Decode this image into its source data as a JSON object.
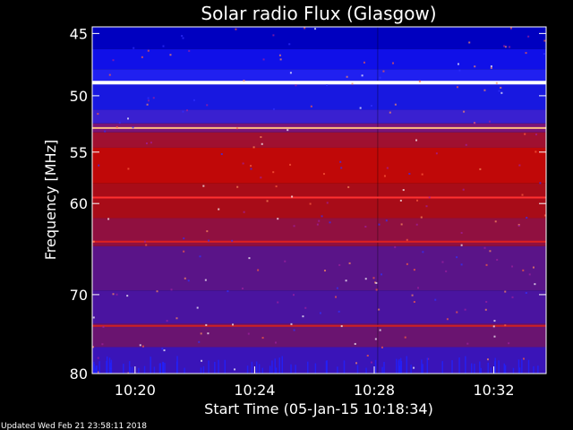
{
  "chart_data": {
    "type": "heatmap",
    "title": "Solar radio Flux (Glasgow)",
    "xlabel": "Start Time (05-Jan-15 10:18:34)",
    "ylabel": "Frequency [MHz]",
    "x_ticks": [
      "10:20",
      "10:24",
      "10:28",
      "10:32"
    ],
    "y_ticks": [
      45,
      50,
      55,
      60,
      70,
      80
    ],
    "y_scale": "log",
    "xlim": [
      "10:18:34",
      "10:33:45"
    ],
    "ylim": [
      80,
      44.5
    ],
    "data_gap_at": "10:28:07",
    "bands": [
      {
        "mhz_from": 44.5,
        "mhz_to": 46.2,
        "color": "#0000c0"
      },
      {
        "mhz_from": 46.2,
        "mhz_to": 47.8,
        "color": "#1010e8"
      },
      {
        "mhz_from": 47.8,
        "mhz_to": 48.8,
        "color": "#2020f0"
      },
      {
        "mhz_from": 48.8,
        "mhz_to": 51.2,
        "color": "#1818e0"
      },
      {
        "mhz_from": 51.2,
        "mhz_to": 52.4,
        "color": "#3a20d0"
      },
      {
        "mhz_from": 52.4,
        "mhz_to": 53.2,
        "color": "#7a1478"
      },
      {
        "mhz_from": 53.2,
        "mhz_to": 54.6,
        "color": "#a01030"
      },
      {
        "mhz_from": 54.6,
        "mhz_to": 58.0,
        "color": "#c00808"
      },
      {
        "mhz_from": 58.0,
        "mhz_to": 61.5,
        "color": "#a80c18"
      },
      {
        "mhz_from": 61.5,
        "mhz_to": 64.5,
        "color": "#901040"
      },
      {
        "mhz_from": 64.5,
        "mhz_to": 69.5,
        "color": "#5a1488"
      },
      {
        "mhz_from": 69.5,
        "mhz_to": 73.5,
        "color": "#4a14a0"
      },
      {
        "mhz_from": 73.5,
        "mhz_to": 76.5,
        "color": "#6a1470"
      },
      {
        "mhz_from": 76.5,
        "mhz_to": 80.0,
        "color": "#3a14b8"
      }
    ],
    "lines": [
      {
        "mhz": 48.9,
        "color": "#ffffff"
      },
      {
        "mhz": 52.8,
        "color": "#ffc080"
      },
      {
        "mhz": 59.4,
        "color": "#ff3030"
      },
      {
        "mhz": 64.0,
        "color": "#e02020"
      },
      {
        "mhz": 73.8,
        "color": "#d02020"
      }
    ]
  },
  "footer": {
    "updated": "Updated Wed Feb 21 23:58:11 2018"
  }
}
